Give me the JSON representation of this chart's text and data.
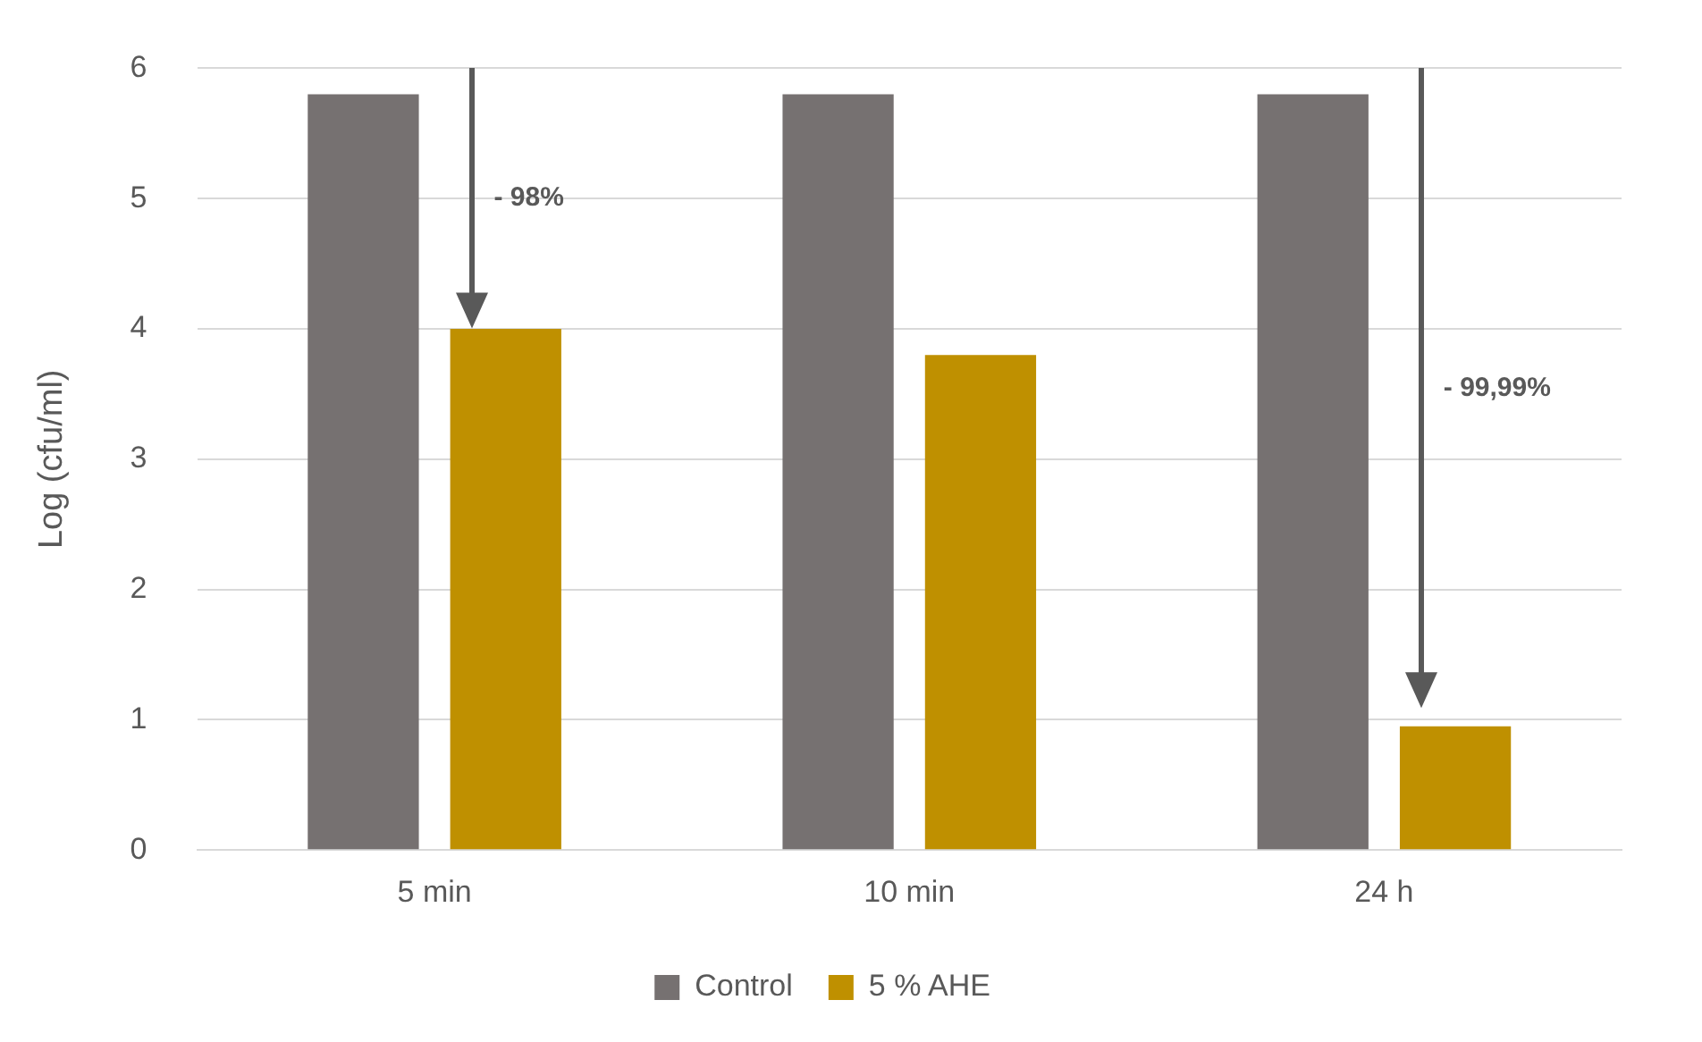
{
  "chart_data": {
    "type": "bar",
    "ylabel": "Log (cfu/ml)",
    "categories": [
      "5 min",
      "10 min",
      "24 h"
    ],
    "series": [
      {
        "name": "Control",
        "color": "#767171",
        "values": [
          5.8,
          5.8,
          5.8
        ]
      },
      {
        "name": "5 % AHE",
        "color": "#bf9000",
        "values": [
          4.0,
          3.8,
          0.95
        ]
      }
    ],
    "ylim": [
      0,
      6
    ],
    "yticks": [
      0,
      1,
      2,
      3,
      4,
      5,
      6
    ],
    "grid": "y",
    "legend": "bottom",
    "annotations": [
      "- 98%",
      "- 99,99%"
    ]
  }
}
